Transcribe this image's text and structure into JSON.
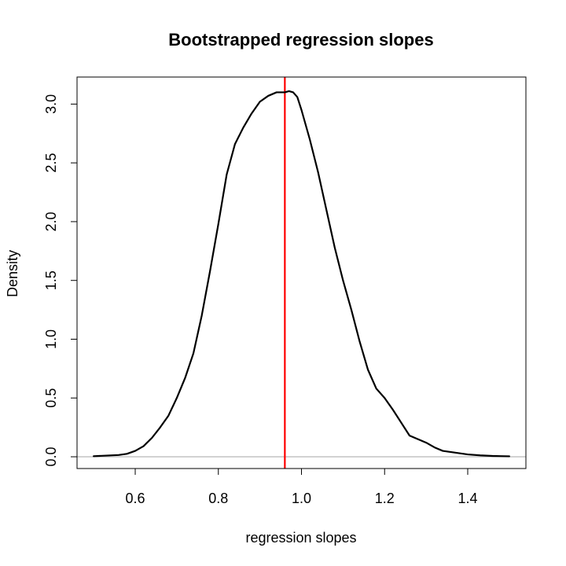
{
  "chart_data": {
    "type": "line",
    "title": "Bootstrapped regression slopes",
    "xlabel": "regression slopes",
    "ylabel": "Density",
    "xlim": [
      0.46,
      1.54
    ],
    "ylim": [
      -0.1,
      3.23
    ],
    "x_ticks": [
      0.6,
      0.8,
      1.0,
      1.2,
      1.4
    ],
    "x_tick_labels": [
      "0.6",
      "0.8",
      "1.0",
      "1.2",
      "1.4"
    ],
    "y_ticks": [
      0.0,
      0.5,
      1.0,
      1.5,
      2.0,
      2.5,
      3.0
    ],
    "y_tick_labels": [
      "0.0",
      "0.5",
      "1.0",
      "1.5",
      "2.0",
      "2.5",
      "3.0"
    ],
    "grid": false,
    "series": [
      {
        "color": "#000000",
        "x": [
          0.5,
          0.53,
          0.56,
          0.58,
          0.6,
          0.62,
          0.64,
          0.66,
          0.68,
          0.7,
          0.72,
          0.74,
          0.76,
          0.78,
          0.8,
          0.82,
          0.84,
          0.86,
          0.88,
          0.9,
          0.92,
          0.94,
          0.96,
          0.97,
          0.98,
          0.99,
          1.0,
          1.02,
          1.04,
          1.06,
          1.08,
          1.1,
          1.12,
          1.14,
          1.16,
          1.18,
          1.2,
          1.22,
          1.24,
          1.26,
          1.28,
          1.3,
          1.32,
          1.34,
          1.36,
          1.38,
          1.4,
          1.43,
          1.46,
          1.5
        ],
        "y": [
          0.005,
          0.01,
          0.015,
          0.025,
          0.05,
          0.09,
          0.16,
          0.25,
          0.35,
          0.5,
          0.67,
          0.88,
          1.2,
          1.58,
          1.98,
          2.4,
          2.66,
          2.8,
          2.92,
          3.02,
          3.07,
          3.1,
          3.1,
          3.11,
          3.1,
          3.06,
          2.95,
          2.7,
          2.42,
          2.1,
          1.78,
          1.5,
          1.25,
          0.98,
          0.74,
          0.58,
          0.5,
          0.4,
          0.29,
          0.18,
          0.15,
          0.12,
          0.08,
          0.05,
          0.04,
          0.03,
          0.02,
          0.012,
          0.007,
          0.004
        ]
      }
    ],
    "reference_lines": [
      {
        "orientation": "horizontal",
        "y": 0.0,
        "color": "#bebebe"
      },
      {
        "orientation": "vertical",
        "x": 0.96,
        "color": "#ff0000"
      }
    ]
  }
}
